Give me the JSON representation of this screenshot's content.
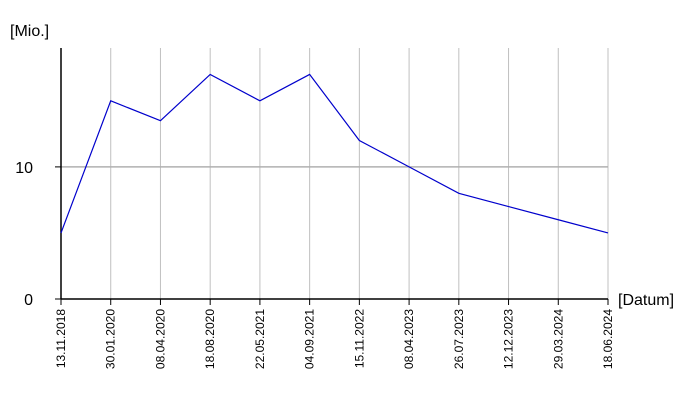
{
  "chart_data": {
    "type": "line",
    "y_label": "[Mio.]",
    "x_label": "[Datum]",
    "categories": [
      "13.11.2018",
      "30.01.2020",
      "08.04.2020",
      "18.08.2020",
      "22.05.2021",
      "04.09.2021",
      "15.11.2022",
      "08.04.2023",
      "26.07.2023",
      "12.12.2023",
      "29.03.2024",
      "18.06.2024"
    ],
    "series": [
      {
        "color": "#0000cc",
        "values": [
          5,
          15,
          13.5,
          17,
          15,
          17,
          12,
          10,
          8,
          7,
          6,
          5
        ]
      }
    ],
    "ylim": [
      0,
      19
    ],
    "yticks": [
      0,
      10
    ],
    "grid": true
  }
}
